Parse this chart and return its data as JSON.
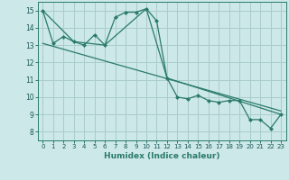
{
  "title": "",
  "xlabel": "Humidex (Indice chaleur)",
  "bg_color": "#cce8e8",
  "grid_color": "#aacccc",
  "line_color": "#2a7a6a",
  "xlim": [
    -0.5,
    23.5
  ],
  "ylim": [
    7.5,
    15.5
  ],
  "yticks": [
    8,
    9,
    10,
    11,
    12,
    13,
    14,
    15
  ],
  "xticks": [
    0,
    1,
    2,
    3,
    4,
    5,
    6,
    7,
    8,
    9,
    10,
    11,
    12,
    13,
    14,
    15,
    16,
    17,
    18,
    19,
    20,
    21,
    22,
    23
  ],
  "series": [
    [
      0,
      15.0
    ],
    [
      1,
      13.1
    ],
    [
      2,
      13.5
    ],
    [
      3,
      13.2
    ],
    [
      4,
      13.0
    ],
    [
      5,
      13.6
    ],
    [
      6,
      13.0
    ],
    [
      7,
      14.6
    ],
    [
      8,
      14.9
    ],
    [
      9,
      14.9
    ],
    [
      10,
      15.1
    ],
    [
      11,
      14.4
    ],
    [
      12,
      11.1
    ],
    [
      13,
      10.0
    ],
    [
      14,
      9.9
    ],
    [
      15,
      10.1
    ],
    [
      16,
      9.8
    ],
    [
      17,
      9.7
    ],
    [
      18,
      9.8
    ],
    [
      19,
      9.8
    ],
    [
      20,
      8.7
    ],
    [
      21,
      8.7
    ],
    [
      22,
      8.2
    ],
    [
      23,
      9.0
    ]
  ],
  "series2": [
    [
      0,
      15.0
    ],
    [
      3,
      13.2
    ],
    [
      6,
      13.0
    ],
    [
      10,
      15.1
    ],
    [
      12,
      11.1
    ],
    [
      23,
      9.0
    ]
  ],
  "regression_line": [
    [
      0,
      13.1
    ],
    [
      23,
      9.2
    ]
  ]
}
